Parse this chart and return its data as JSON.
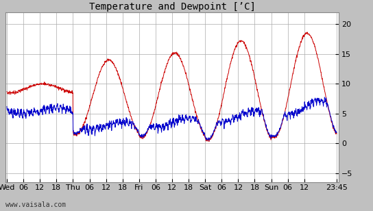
{
  "title": "Temperature and Dewpoint [’C]",
  "yticks": [
    -5,
    0,
    5,
    10,
    15,
    20
  ],
  "ylim": [
    -6.5,
    22
  ],
  "temp_color": "#cc0000",
  "dewp_color": "#0000cc",
  "bg_color": "#c0c0c0",
  "plot_bg": "#ffffff",
  "linewidth": 0.7,
  "title_fontsize": 10,
  "watermark": "www.vaisala.com",
  "xlim_max": 119.75,
  "x_tick_pos": [
    0,
    6,
    12,
    18,
    24,
    30,
    36,
    42,
    48,
    54,
    60,
    66,
    72,
    78,
    84,
    90,
    96,
    102,
    108,
    119.75
  ],
  "x_tick_labels": [
    "Wed",
    "06",
    "12",
    "18",
    "Thu",
    "06",
    "12",
    "18",
    "Fri",
    "06",
    "12",
    "18",
    "Sat",
    "06",
    "12",
    "18",
    "Sun",
    "06",
    "12",
    "23:45"
  ]
}
